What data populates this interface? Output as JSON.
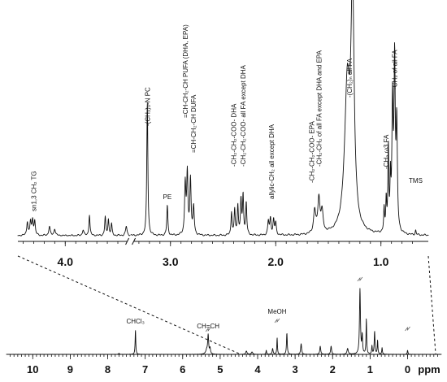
{
  "chart_data": [
    {
      "type": "line",
      "panel": "expanded",
      "title": "",
      "xlabel": "",
      "ylabel": "",
      "x_reversed": true,
      "xlim": [
        4.45,
        0.55
      ],
      "ylim": [
        0,
        1
      ],
      "xticks": [
        4.0,
        3.0,
        2.0,
        1.0
      ],
      "xtick_labels": [
        "4.0",
        "3.0",
        "2.0",
        "1.0"
      ],
      "axis_break_at_ppm": 3.38,
      "peaks": [
        {
          "ppm": 4.36,
          "h": 0.06,
          "w": 0.007
        },
        {
          "ppm": 4.33,
          "h": 0.06,
          "w": 0.007
        },
        {
          "ppm": 4.31,
          "h": 0.065,
          "w": 0.007
        },
        {
          "ppm": 4.29,
          "h": 0.06,
          "w": 0.007
        },
        {
          "ppm": 4.15,
          "h": 0.04,
          "w": 0.008
        },
        {
          "ppm": 4.1,
          "h": 0.03,
          "w": 0.008
        },
        {
          "ppm": 3.83,
          "h": 0.025,
          "w": 0.008
        },
        {
          "ppm": 3.77,
          "h": 0.09,
          "w": 0.006
        },
        {
          "ppm": 3.62,
          "h": 0.08,
          "w": 0.006
        },
        {
          "ppm": 3.59,
          "h": 0.07,
          "w": 0.006
        },
        {
          "ppm": 3.56,
          "h": 0.05,
          "w": 0.006
        },
        {
          "ppm": 3.42,
          "h": 0.04,
          "w": 0.008
        },
        {
          "ppm": 3.22,
          "h": 0.58,
          "w": 0.006
        },
        {
          "ppm": 3.03,
          "h": 0.13,
          "w": 0.006
        },
        {
          "ppm": 2.86,
          "h": 0.22,
          "w": 0.007
        },
        {
          "ppm": 2.84,
          "h": 0.26,
          "w": 0.007
        },
        {
          "ppm": 2.81,
          "h": 0.24,
          "w": 0.007
        },
        {
          "ppm": 2.78,
          "h": 0.12,
          "w": 0.007
        },
        {
          "ppm": 2.42,
          "h": 0.1,
          "w": 0.006
        },
        {
          "ppm": 2.39,
          "h": 0.11,
          "w": 0.006
        },
        {
          "ppm": 2.36,
          "h": 0.13,
          "w": 0.006
        },
        {
          "ppm": 2.33,
          "h": 0.15,
          "w": 0.006
        },
        {
          "ppm": 2.31,
          "h": 0.17,
          "w": 0.006
        },
        {
          "ppm": 2.28,
          "h": 0.14,
          "w": 0.006
        },
        {
          "ppm": 2.07,
          "h": 0.06,
          "w": 0.007
        },
        {
          "ppm": 2.05,
          "h": 0.07,
          "w": 0.007
        },
        {
          "ppm": 2.02,
          "h": 0.065,
          "w": 0.007
        },
        {
          "ppm": 2.0,
          "h": 0.05,
          "w": 0.007
        },
        {
          "ppm": 1.63,
          "h": 0.1,
          "w": 0.012
        },
        {
          "ppm": 1.59,
          "h": 0.15,
          "w": 0.012
        },
        {
          "ppm": 1.56,
          "h": 0.09,
          "w": 0.012
        },
        {
          "ppm": 1.32,
          "h": 0.62,
          "w": 0.03
        },
        {
          "ppm": 1.27,
          "h": 1.0,
          "w": 0.018
        },
        {
          "ppm": 0.97,
          "h": 0.1,
          "w": 0.005
        },
        {
          "ppm": 0.95,
          "h": 0.14,
          "w": 0.005
        },
        {
          "ppm": 0.93,
          "h": 0.36,
          "w": 0.005
        },
        {
          "ppm": 0.91,
          "h": 0.2,
          "w": 0.005
        },
        {
          "ppm": 0.89,
          "h": 0.55,
          "w": 0.007
        },
        {
          "ppm": 0.87,
          "h": 0.72,
          "w": 0.007
        },
        {
          "ppm": 0.85,
          "h": 0.45,
          "w": 0.007
        },
        {
          "ppm": 0.67,
          "h": 0.02,
          "w": 0.005
        }
      ],
      "annotations": [
        {
          "text": "sn1,3 CH₂ TG",
          "ppm": 4.3
        },
        {
          "text": "-(CH₃)₃-N PC",
          "ppm": 3.22
        },
        {
          "text": "PE",
          "ppm": 3.03
        },
        {
          "text": "=CH-CH₂-CH PUFA (DHA, EPA)",
          "ppm": 2.86
        },
        {
          "text": "=CH-CH₂-CH DUFA",
          "ppm": 2.78
        },
        {
          "text": "-CH₂-CH₂-COO- DHA",
          "ppm": 2.4
        },
        {
          "text": "-CH₂-CH₂-COO- all FA except DHA",
          "ppm": 2.31
        },
        {
          "text": "allylic-CH₂ all except DHA",
          "ppm": 2.04
        },
        {
          "text": "-CH₂-CH₂-COO- EPA",
          "ppm": 1.66
        },
        {
          "text": "-CH₂-CH₂ of all FA except DHA and EPA",
          "ppm": 1.59
        },
        {
          "text": "-(CH₂)ₙ all FA",
          "ppm": 1.3
        },
        {
          "text": "-CH₃ ω3 FA",
          "ppm": 0.95
        },
        {
          "text": "-CH₃ of all FA",
          "ppm": 0.87
        },
        {
          "text": "TMS",
          "ppm": 0.67
        }
      ]
    },
    {
      "type": "line",
      "panel": "full",
      "title": "",
      "xlabel": "ppm",
      "ylabel": "",
      "x_reversed": true,
      "xlim": [
        10.7,
        -0.9
      ],
      "ylim": [
        0,
        1
      ],
      "xticks": [
        10,
        9,
        8,
        7,
        6,
        5,
        4,
        3,
        2,
        1,
        0
      ],
      "xtick_labels": [
        "10",
        "9",
        "8",
        "7",
        "6",
        "5",
        "4",
        "3",
        "2",
        "1",
        "0",
        "ppm"
      ],
      "peaks": [
        {
          "ppm": 7.7,
          "h": 0.015,
          "w": 0.01
        },
        {
          "ppm": 7.26,
          "h": 0.3,
          "w": 0.01
        },
        {
          "ppm": 5.36,
          "h": 0.05,
          "w": 0.03
        },
        {
          "ppm": 5.32,
          "h": 0.23,
          "w": 0.015
        },
        {
          "ppm": 5.27,
          "h": 0.07,
          "w": 0.015
        },
        {
          "ppm": 4.3,
          "h": 0.04,
          "w": 0.02
        },
        {
          "ppm": 4.15,
          "h": 0.03,
          "w": 0.02
        },
        {
          "ppm": 3.77,
          "h": 0.05,
          "w": 0.01
        },
        {
          "ppm": 3.6,
          "h": 0.07,
          "w": 0.015
        },
        {
          "ppm": 3.48,
          "h": 0.2,
          "w": 0.01
        },
        {
          "ppm": 3.22,
          "h": 0.26,
          "w": 0.012
        },
        {
          "ppm": 2.84,
          "h": 0.13,
          "w": 0.015
        },
        {
          "ppm": 2.33,
          "h": 0.1,
          "w": 0.015
        },
        {
          "ppm": 2.04,
          "h": 0.1,
          "w": 0.015
        },
        {
          "ppm": 1.6,
          "h": 0.07,
          "w": 0.02
        },
        {
          "ppm": 1.27,
          "h": 0.8,
          "w": 0.015
        },
        {
          "ppm": 1.21,
          "h": 0.22,
          "w": 0.012
        },
        {
          "ppm": 1.1,
          "h": 0.43,
          "w": 0.01
        },
        {
          "ppm": 0.95,
          "h": 0.1,
          "w": 0.01
        },
        {
          "ppm": 0.88,
          "h": 0.28,
          "w": 0.012
        },
        {
          "ppm": 0.8,
          "h": 0.17,
          "w": 0.01
        },
        {
          "ppm": 0.68,
          "h": 0.08,
          "w": 0.01
        },
        {
          "ppm": 0.0,
          "h": 0.05,
          "w": 0.01
        }
      ],
      "annotations": [
        {
          "text": "CHCl₃",
          "ppm": 7.26
        },
        {
          "text": "CH=CH",
          "ppm": 5.32
        },
        {
          "text": "MeOH",
          "ppm": 3.48
        }
      ]
    }
  ]
}
